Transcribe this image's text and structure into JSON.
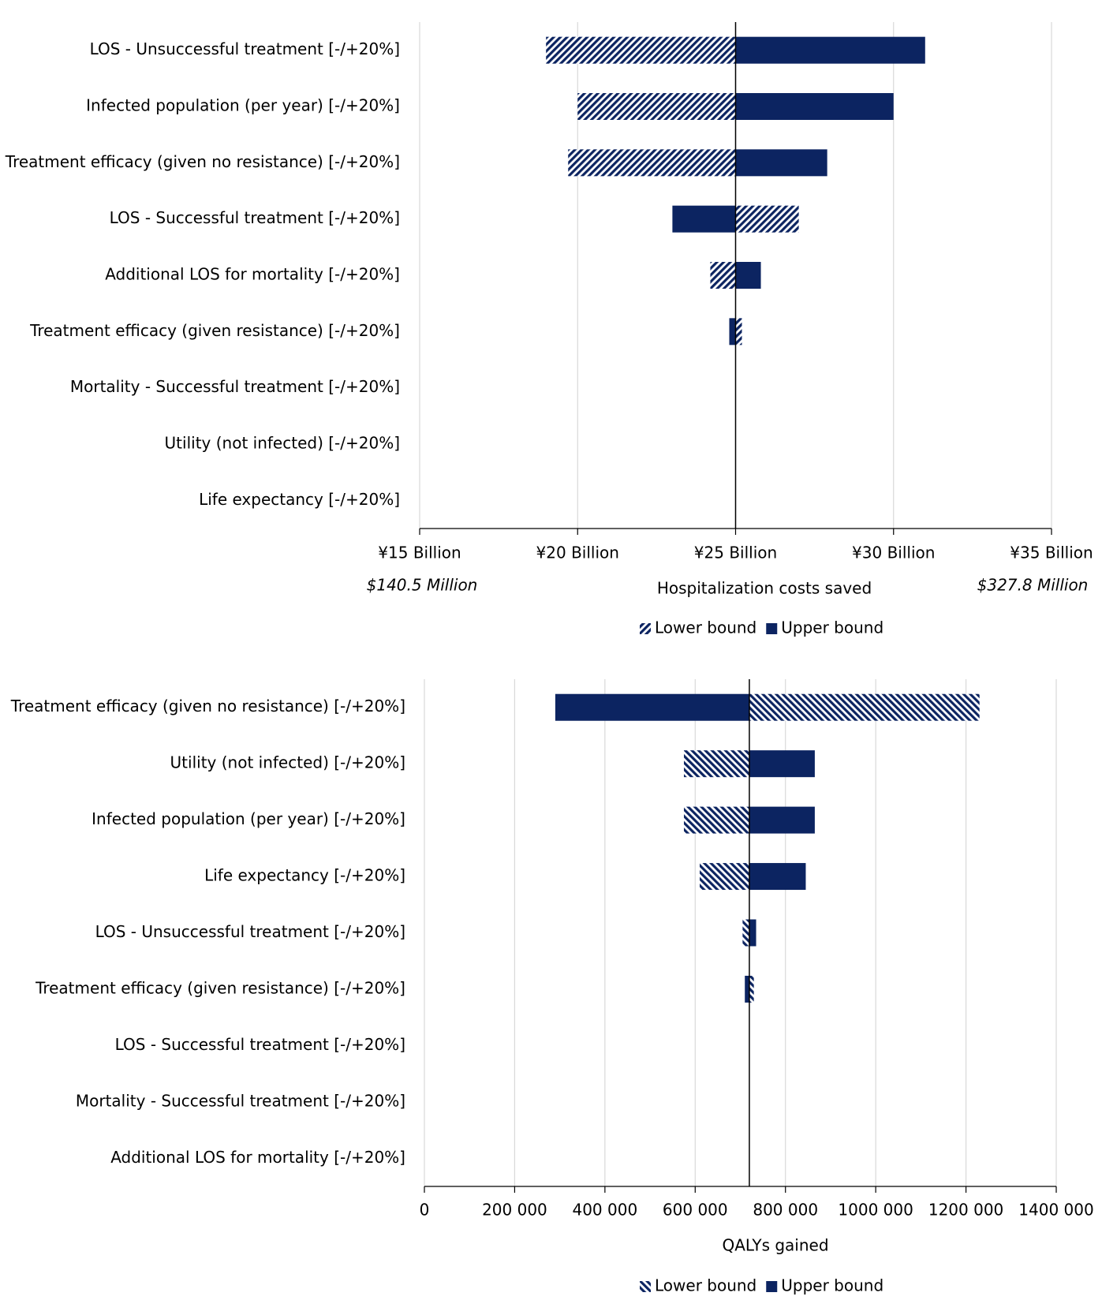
{
  "chart_data": [
    {
      "type": "tornado",
      "categories": [
        "LOS - Unsuccessful treatment  [-/+20%]",
        "Infected population (per year) [-/+20%]",
        "Treatment efficacy (given no resistance) [-/+20%]",
        "LOS - Successful treatment [-/+20%]",
        "Additional LOS for mortality [-/+20%]",
        "Treatment efficacy (given resistance) [-/+20%]",
        "Mortality - Successful treatment [-/+20%]",
        "Utility (not infected) [-/+20%]",
        "Life expectancy  [-/+20%]"
      ],
      "base": 25,
      "series": [
        {
          "name": "Lower bound",
          "color": "#0c2461",
          "hatch": "/",
          "values": [
            19.0,
            20.0,
            19.7,
            27.0,
            24.2,
            25.2,
            25,
            25,
            25
          ]
        },
        {
          "name": "Upper bound",
          "color": "#0c2461",
          "values": [
            31.0,
            30.0,
            27.9,
            23.0,
            25.8,
            24.8,
            25,
            25,
            25
          ]
        }
      ],
      "xlim": [
        15,
        35
      ],
      "xticks": [
        {
          "value": 15,
          "label": "¥15 Billion"
        },
        {
          "value": 20,
          "label": "¥20 Billion"
        },
        {
          "value": 25,
          "label": "¥25 Billion"
        },
        {
          "value": 30,
          "label": "¥30 Billion"
        },
        {
          "value": 35,
          "label": "¥35 Billion"
        }
      ],
      "x_label": "Hospitalization costs saved",
      "annotations": [
        "$140.5 Million",
        "$327.8 Million"
      ],
      "grid": true,
      "legend": "bottom"
    },
    {
      "type": "tornado",
      "categories": [
        "Treatment efficacy (given no resistance) [-/+20%]",
        "Utility (not infected) [-/+20%]",
        "Infected population (per year) [-/+20%]",
        "Life expectancy  [-/+20%]",
        "LOS - Unsuccessful treatment  [-/+20%]",
        "Treatment efficacy (given resistance) [-/+20%]",
        "LOS - Successful treatment [-/+20%]",
        "Mortality - Successful treatment [-/+20%]",
        "Additional LOS for mortality [-/+20%]"
      ],
      "base": 720000,
      "series": [
        {
          "name": "Lower bound",
          "color": "#0c2461",
          "hatch": "\\",
          "values": [
            1230000,
            575000,
            575000,
            610000,
            705000,
            730000,
            720000,
            720000,
            720000
          ]
        },
        {
          "name": "Upper bound",
          "color": "#0c2461",
          "values": [
            290000,
            865000,
            865000,
            845000,
            735000,
            710000,
            720000,
            720000,
            720000
          ]
        }
      ],
      "xlim": [
        0,
        1400000
      ],
      "xticks": [
        0,
        {
          "value": 200000,
          "label": "200 000"
        },
        {
          "value": 400000,
          "label": "400 000"
        },
        {
          "value": 600000,
          "label": "600 000"
        },
        {
          "value": 800000,
          "label": "800 000"
        },
        {
          "value": 1000000,
          "label": "1000 000"
        },
        {
          "value": 1200000,
          "label": "1200 000"
        },
        {
          "value": 1400000,
          "label": "1400 000"
        }
      ],
      "x_label": "QALYs gained",
      "grid": true,
      "legend": "bottom"
    }
  ]
}
